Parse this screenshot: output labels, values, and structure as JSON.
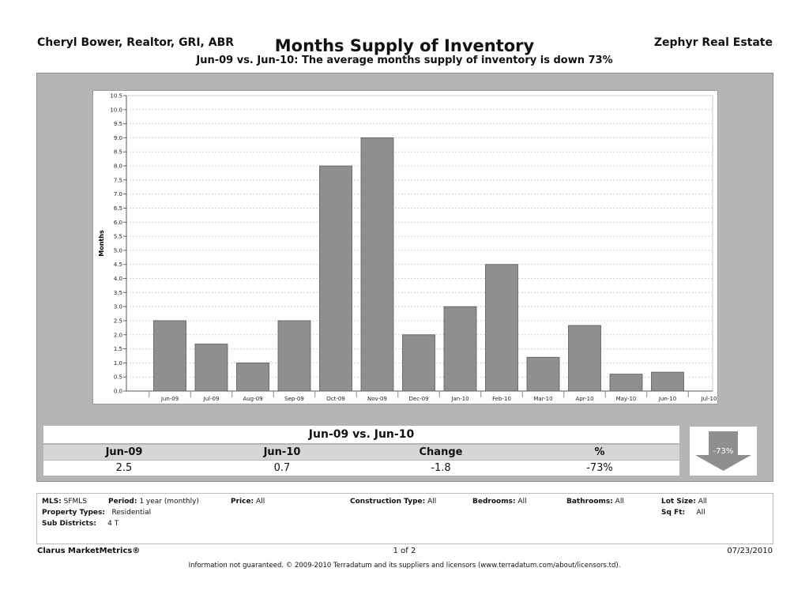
{
  "header": {
    "agent": "Cheryl Bower, Realtor, GRI, ABR",
    "title": "Months Supply of Inventory",
    "company": "Zephyr Real Estate",
    "subtitle": "Jun-09 vs. Jun-10:  The average months supply of inventory is down 73%"
  },
  "chart_data": {
    "type": "bar",
    "ylabel": "Months",
    "xlabel": "",
    "ylim": [
      0,
      10.5
    ],
    "ytick_step": 0.5,
    "categories": [
      "Jun-09",
      "Jul-09",
      "Aug-09",
      "Sep-09",
      "Oct-09",
      "Nov-09",
      "Dec-09",
      "Jan-10",
      "Feb-10",
      "Mar-10",
      "Apr-10",
      "May-10",
      "Jun-10"
    ],
    "extra_tick_label": "Jul-10",
    "values": [
      2.5,
      1.67,
      1.0,
      2.5,
      8.0,
      9.0,
      2.0,
      3.0,
      4.5,
      1.2,
      2.33,
      0.6,
      0.67
    ],
    "grid": true,
    "bar_color": "#8f8f8f"
  },
  "stats": {
    "title": "Jun-09 vs. Jun-10",
    "headers": [
      "Jun-09",
      "Jun-10",
      "Change",
      "%"
    ],
    "values": [
      "2.5",
      "0.7",
      "-1.8",
      "-73%"
    ],
    "badge": "-73%"
  },
  "filters": {
    "mls_label": "MLS:",
    "mls_value": "SFMLS",
    "period_label": "Period:",
    "period_value": "1 year (monthly)",
    "price_label": "Price:",
    "price_value": "All",
    "construction_label": "Construction Type:",
    "construction_value": "All",
    "bedrooms_label": "Bedrooms:",
    "bedrooms_value": "All",
    "bathrooms_label": "Bathrooms:",
    "bathrooms_value": "All",
    "lotsize_label": "Lot Size:",
    "lotsize_value": "All",
    "proptype_label": "Property Types:",
    "proptype_value": "Residential",
    "sqft_label": "Sq Ft:",
    "sqft_value": "All",
    "subdistricts_label": "Sub Districts:",
    "subdistricts_value": "4 T"
  },
  "footer": {
    "brand": "Clarus MarketMetrics®",
    "page": "1 of 2",
    "date": "07/23/2010",
    "disclaimer": "Information not guaranteed.  © 2009-2010 Terradatum and its suppliers and licensors (www.terradatum.com/about/licensors.td)."
  }
}
